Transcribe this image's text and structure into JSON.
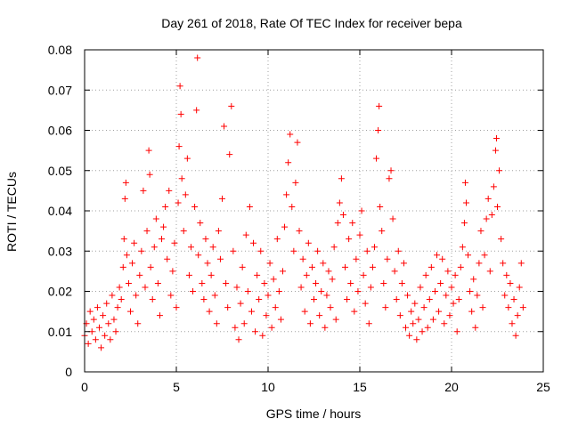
{
  "chart_data": {
    "type": "scatter",
    "title": "Day 261 of 2018, Rate Of TEC Index for receiver bepa",
    "xlabel": "GPS time / hours",
    "ylabel": "ROTI / TECUs",
    "xlim": [
      0,
      25
    ],
    "ylim": [
      0,
      0.08
    ],
    "xticks": [
      0,
      5,
      10,
      15,
      20,
      25
    ],
    "xtick_labels": [
      "0",
      "5",
      "10",
      "15",
      "20",
      "25"
    ],
    "yticks": [
      0,
      0.01,
      0.02,
      0.03,
      0.04,
      0.05,
      0.06,
      0.07,
      0.08
    ],
    "ytick_labels": [
      "0",
      "0.01",
      "0.02",
      "0.03",
      "0.04",
      "0.05",
      "0.06",
      "0.07",
      "0.08"
    ],
    "grid": true,
    "marker": "plus",
    "marker_color": "#ff0000",
    "series": [
      {
        "name": "ROTI",
        "points": [
          [
            0.0,
            0.009
          ],
          [
            0.1,
            0.012
          ],
          [
            0.2,
            0.007
          ],
          [
            0.3,
            0.015
          ],
          [
            0.4,
            0.01
          ],
          [
            0.5,
            0.013
          ],
          [
            0.6,
            0.008
          ],
          [
            0.7,
            0.016
          ],
          [
            0.8,
            0.011
          ],
          [
            0.9,
            0.006
          ],
          [
            1.0,
            0.014
          ],
          [
            1.1,
            0.009
          ],
          [
            1.2,
            0.017
          ],
          [
            1.3,
            0.012
          ],
          [
            1.4,
            0.008
          ],
          [
            1.5,
            0.019
          ],
          [
            1.6,
            0.013
          ],
          [
            1.7,
            0.01
          ],
          [
            1.8,
            0.016
          ],
          [
            1.9,
            0.021
          ],
          [
            2.0,
            0.018
          ],
          [
            2.1,
            0.026
          ],
          [
            2.15,
            0.033
          ],
          [
            2.2,
            0.043
          ],
          [
            2.25,
            0.047
          ],
          [
            2.3,
            0.029
          ],
          [
            2.4,
            0.022
          ],
          [
            2.5,
            0.015
          ],
          [
            2.6,
            0.027
          ],
          [
            2.7,
            0.032
          ],
          [
            2.8,
            0.019
          ],
          [
            2.9,
            0.012
          ],
          [
            3.0,
            0.024
          ],
          [
            3.1,
            0.03
          ],
          [
            3.2,
            0.045
          ],
          [
            3.3,
            0.021
          ],
          [
            3.4,
            0.035
          ],
          [
            3.5,
            0.055
          ],
          [
            3.55,
            0.049
          ],
          [
            3.6,
            0.026
          ],
          [
            3.7,
            0.018
          ],
          [
            3.8,
            0.031
          ],
          [
            3.9,
            0.038
          ],
          [
            4.0,
            0.022
          ],
          [
            4.1,
            0.014
          ],
          [
            4.2,
            0.033
          ],
          [
            4.3,
            0.036
          ],
          [
            4.4,
            0.041
          ],
          [
            4.5,
            0.028
          ],
          [
            4.6,
            0.045
          ],
          [
            4.7,
            0.019
          ],
          [
            4.8,
            0.025
          ],
          [
            4.9,
            0.032
          ],
          [
            5.0,
            0.016
          ],
          [
            5.1,
            0.042
          ],
          [
            5.15,
            0.056
          ],
          [
            5.2,
            0.071
          ],
          [
            5.25,
            0.064
          ],
          [
            5.3,
            0.048
          ],
          [
            5.4,
            0.035
          ],
          [
            5.5,
            0.044
          ],
          [
            5.6,
            0.053
          ],
          [
            5.7,
            0.024
          ],
          [
            5.8,
            0.031
          ],
          [
            5.9,
            0.02
          ],
          [
            6.0,
            0.041
          ],
          [
            6.1,
            0.065
          ],
          [
            6.15,
            0.078
          ],
          [
            6.2,
            0.029
          ],
          [
            6.3,
            0.037
          ],
          [
            6.4,
            0.022
          ],
          [
            6.5,
            0.018
          ],
          [
            6.6,
            0.033
          ],
          [
            6.7,
            0.027
          ],
          [
            6.8,
            0.015
          ],
          [
            6.9,
            0.024
          ],
          [
            7.0,
            0.031
          ],
          [
            7.1,
            0.019
          ],
          [
            7.2,
            0.012
          ],
          [
            7.3,
            0.035
          ],
          [
            7.4,
            0.028
          ],
          [
            7.5,
            0.043
          ],
          [
            7.6,
            0.061
          ],
          [
            7.7,
            0.022
          ],
          [
            7.8,
            0.016
          ],
          [
            7.9,
            0.054
          ],
          [
            8.0,
            0.066
          ],
          [
            8.1,
            0.03
          ],
          [
            8.2,
            0.011
          ],
          [
            8.3,
            0.021
          ],
          [
            8.4,
            0.008
          ],
          [
            8.5,
            0.017
          ],
          [
            8.6,
            0.026
          ],
          [
            8.7,
            0.012
          ],
          [
            8.8,
            0.034
          ],
          [
            8.9,
            0.02
          ],
          [
            9.0,
            0.041
          ],
          [
            9.1,
            0.015
          ],
          [
            9.2,
            0.032
          ],
          [
            9.3,
            0.01
          ],
          [
            9.4,
            0.024
          ],
          [
            9.5,
            0.018
          ],
          [
            9.6,
            0.03
          ],
          [
            9.7,
            0.009
          ],
          [
            9.8,
            0.022
          ],
          [
            9.9,
            0.014
          ],
          [
            10.0,
            0.019
          ],
          [
            10.1,
            0.027
          ],
          [
            10.2,
            0.011
          ],
          [
            10.3,
            0.023
          ],
          [
            10.4,
            0.016
          ],
          [
            10.5,
            0.033
          ],
          [
            10.6,
            0.02
          ],
          [
            10.7,
            0.013
          ],
          [
            10.8,
            0.025
          ],
          [
            10.9,
            0.036
          ],
          [
            11.0,
            0.044
          ],
          [
            11.1,
            0.052
          ],
          [
            11.2,
            0.059
          ],
          [
            11.3,
            0.041
          ],
          [
            11.4,
            0.03
          ],
          [
            11.5,
            0.047
          ],
          [
            11.6,
            0.057
          ],
          [
            11.7,
            0.035
          ],
          [
            11.8,
            0.021
          ],
          [
            11.9,
            0.028
          ],
          [
            12.0,
            0.015
          ],
          [
            12.1,
            0.024
          ],
          [
            12.2,
            0.032
          ],
          [
            12.3,
            0.012
          ],
          [
            12.4,
            0.026
          ],
          [
            12.5,
            0.018
          ],
          [
            12.6,
            0.022
          ],
          [
            12.7,
            0.03
          ],
          [
            12.8,
            0.014
          ],
          [
            12.9,
            0.02
          ],
          [
            13.0,
            0.027
          ],
          [
            13.1,
            0.011
          ],
          [
            13.2,
            0.019
          ],
          [
            13.3,
            0.025
          ],
          [
            13.4,
            0.016
          ],
          [
            13.5,
            0.023
          ],
          [
            13.6,
            0.031
          ],
          [
            13.7,
            0.013
          ],
          [
            13.8,
            0.037
          ],
          [
            13.9,
            0.042
          ],
          [
            14.0,
            0.048
          ],
          [
            14.1,
            0.039
          ],
          [
            14.2,
            0.026
          ],
          [
            14.3,
            0.018
          ],
          [
            14.4,
            0.033
          ],
          [
            14.5,
            0.022
          ],
          [
            14.6,
            0.037
          ],
          [
            14.7,
            0.015
          ],
          [
            14.8,
            0.028
          ],
          [
            14.9,
            0.02
          ],
          [
            15.0,
            0.034
          ],
          [
            15.1,
            0.04
          ],
          [
            15.2,
            0.024
          ],
          [
            15.3,
            0.017
          ],
          [
            15.4,
            0.03
          ],
          [
            15.5,
            0.012
          ],
          [
            15.6,
            0.021
          ],
          [
            15.7,
            0.026
          ],
          [
            15.8,
            0.031
          ],
          [
            15.9,
            0.053
          ],
          [
            16.0,
            0.06
          ],
          [
            16.05,
            0.066
          ],
          [
            16.1,
            0.041
          ],
          [
            16.2,
            0.035
          ],
          [
            16.3,
            0.022
          ],
          [
            16.4,
            0.016
          ],
          [
            16.5,
            0.028
          ],
          [
            16.6,
            0.048
          ],
          [
            16.7,
            0.05
          ],
          [
            16.8,
            0.038
          ],
          [
            16.9,
            0.025
          ],
          [
            17.0,
            0.018
          ],
          [
            17.1,
            0.03
          ],
          [
            17.2,
            0.014
          ],
          [
            17.3,
            0.022
          ],
          [
            17.4,
            0.027
          ],
          [
            17.5,
            0.011
          ],
          [
            17.6,
            0.019
          ],
          [
            17.7,
            0.009
          ],
          [
            17.8,
            0.015
          ],
          [
            17.9,
            0.012
          ],
          [
            18.0,
            0.017
          ],
          [
            18.1,
            0.008
          ],
          [
            18.2,
            0.013
          ],
          [
            18.3,
            0.021
          ],
          [
            18.4,
            0.01
          ],
          [
            18.5,
            0.016
          ],
          [
            18.6,
            0.024
          ],
          [
            18.7,
            0.011
          ],
          [
            18.8,
            0.018
          ],
          [
            18.9,
            0.026
          ],
          [
            19.0,
            0.013
          ],
          [
            19.1,
            0.02
          ],
          [
            19.2,
            0.029
          ],
          [
            19.3,
            0.015
          ],
          [
            19.4,
            0.022
          ],
          [
            19.5,
            0.028
          ],
          [
            19.6,
            0.012
          ],
          [
            19.7,
            0.019
          ],
          [
            19.8,
            0.025
          ],
          [
            19.9,
            0.014
          ],
          [
            20.0,
            0.021
          ],
          [
            20.1,
            0.017
          ],
          [
            20.2,
            0.024
          ],
          [
            20.3,
            0.01
          ],
          [
            20.4,
            0.018
          ],
          [
            20.5,
            0.026
          ],
          [
            20.6,
            0.031
          ],
          [
            20.7,
            0.037
          ],
          [
            20.75,
            0.047
          ],
          [
            20.8,
            0.042
          ],
          [
            20.9,
            0.029
          ],
          [
            21.0,
            0.02
          ],
          [
            21.1,
            0.015
          ],
          [
            21.2,
            0.023
          ],
          [
            21.3,
            0.011
          ],
          [
            21.4,
            0.019
          ],
          [
            21.5,
            0.027
          ],
          [
            21.6,
            0.035
          ],
          [
            21.7,
            0.016
          ],
          [
            21.8,
            0.029
          ],
          [
            21.9,
            0.038
          ],
          [
            22.0,
            0.043
          ],
          [
            22.1,
            0.025
          ],
          [
            22.2,
            0.039
          ],
          [
            22.3,
            0.046
          ],
          [
            22.4,
            0.055
          ],
          [
            22.45,
            0.058
          ],
          [
            22.5,
            0.041
          ],
          [
            22.6,
            0.05
          ],
          [
            22.7,
            0.033
          ],
          [
            22.8,
            0.027
          ],
          [
            22.9,
            0.019
          ],
          [
            23.0,
            0.024
          ],
          [
            23.1,
            0.016
          ],
          [
            23.2,
            0.022
          ],
          [
            23.3,
            0.012
          ],
          [
            23.4,
            0.018
          ],
          [
            23.5,
            0.009
          ],
          [
            23.6,
            0.014
          ],
          [
            23.7,
            0.021
          ],
          [
            23.8,
            0.027
          ],
          [
            23.9,
            0.016
          ]
        ]
      }
    ]
  }
}
